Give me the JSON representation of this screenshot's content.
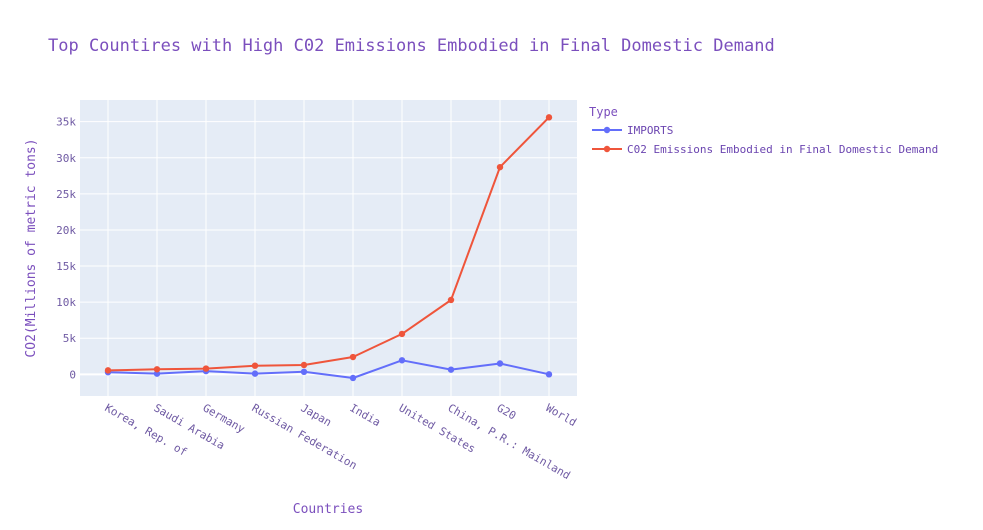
{
  "chart_data": {
    "type": "line",
    "title": "Top Countires with High C02 Emissions Embodied in Final Domestic Demand",
    "xlabel": "Countries",
    "ylabel": "CO2(Millions of metric tons)",
    "categories": [
      "Korea, Rep. of",
      "Saudi Arabia",
      "Germany",
      "Russian Federation",
      "Japan",
      "India",
      "United States",
      "China, P.R.: Mainland",
      "G20",
      "World"
    ],
    "ylim": [
      -3000,
      38000
    ],
    "yticks": [
      0,
      5000,
      10000,
      15000,
      20000,
      25000,
      30000,
      35000
    ],
    "ytick_labels": [
      "0",
      "5k",
      "10k",
      "15k",
      "20k",
      "25k",
      "30k",
      "35k"
    ],
    "grid": true,
    "legend": {
      "title": "Type",
      "placement": "top-right"
    },
    "series": [
      {
        "name": "IMPORTS",
        "color": "#636efa",
        "values": [
          300,
          100,
          450,
          100,
          350,
          -500,
          1950,
          650,
          1500,
          0
        ]
      },
      {
        "name": "C02 Emissions Embodied in Final Domestic Demand",
        "color": "#ef553b",
        "values": [
          550,
          700,
          800,
          1200,
          1300,
          2400,
          5600,
          10300,
          28700,
          35600
        ]
      }
    ]
  },
  "colors": {
    "plot_bg": "#e5ecf6",
    "grid": "#ffffff",
    "text": "#7b4fbd"
  }
}
